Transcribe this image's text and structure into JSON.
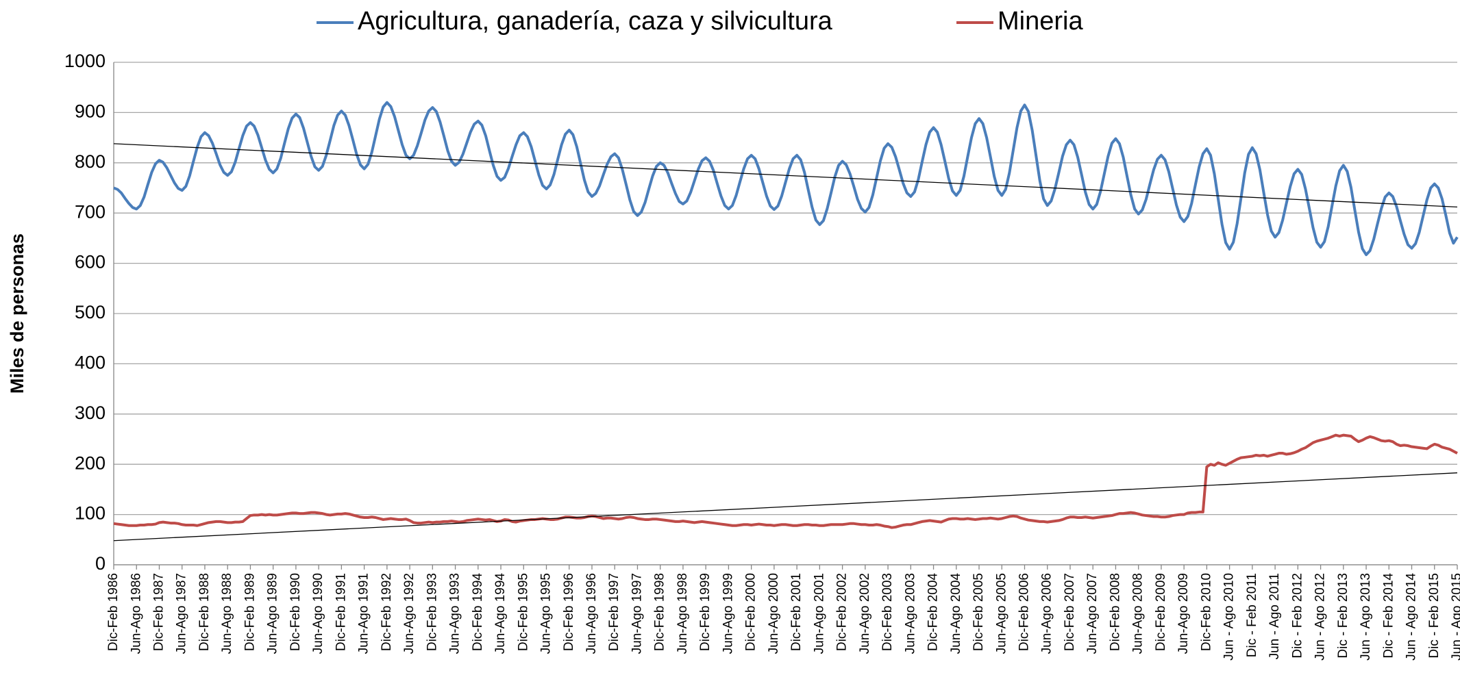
{
  "chart_data": {
    "type": "line",
    "y_label": "Miles de personas",
    "categories": [
      "Dic-Feb 1986",
      null,
      null,
      null,
      null,
      null,
      "Jun-Ago 1986",
      null,
      null,
      null,
      null,
      null,
      "Dic-Feb 1987",
      null,
      null,
      null,
      null,
      null,
      "Jun-Ago 1987",
      null,
      null,
      null,
      null,
      null,
      "Dic-Feb 1988",
      null,
      null,
      null,
      null,
      null,
      "Jun-Ago 1988",
      null,
      null,
      null,
      null,
      null,
      "Dic-Feb 1989",
      null,
      null,
      null,
      null,
      null,
      "Jun-Ago 1989",
      null,
      null,
      null,
      null,
      null,
      "Dic-Feb 1990",
      null,
      null,
      null,
      null,
      null,
      "Jun-Ago 1990",
      null,
      null,
      null,
      null,
      null,
      "Dic-Feb 1991",
      null,
      null,
      null,
      null,
      null,
      "Jun-Ago 1991",
      null,
      null,
      null,
      null,
      null,
      "Dic-Feb 1992",
      null,
      null,
      null,
      null,
      null,
      "Jun-Ago 1992",
      null,
      null,
      null,
      null,
      null,
      "Dic-Feb 1993",
      null,
      null,
      null,
      null,
      null,
      "Jun-Ago 1993",
      null,
      null,
      null,
      null,
      null,
      "Dic-Feb 1994",
      null,
      null,
      null,
      null,
      null,
      "Jun-Ago 1994",
      null,
      null,
      null,
      null,
      null,
      "Dic-Feb 1995",
      null,
      null,
      null,
      null,
      null,
      "Jun-Ago 1995",
      null,
      null,
      null,
      null,
      null,
      "Dic-Feb 1996",
      null,
      null,
      null,
      null,
      null,
      "Jun-Ago 1996",
      null,
      null,
      null,
      null,
      null,
      "Dic-Feb 1997",
      null,
      null,
      null,
      null,
      null,
      "Jun-Ago 1997",
      null,
      null,
      null,
      null,
      null,
      "Dic-Feb 1998",
      null,
      null,
      null,
      null,
      null,
      "Jun-Ago 1998",
      null,
      null,
      null,
      null,
      null,
      "Dic-Feb 1999",
      null,
      null,
      null,
      null,
      null,
      "Jun-Ago 1999",
      null,
      null,
      null,
      null,
      null,
      "Dic-Feb 2000",
      null,
      null,
      null,
      null,
      null,
      "Jun-Ago 2000",
      null,
      null,
      null,
      null,
      null,
      "Dic-Feb 2001",
      null,
      null,
      null,
      null,
      null,
      "Jun-Ago 2001",
      null,
      null,
      null,
      null,
      null,
      "Dic-Feb 2002",
      null,
      null,
      null,
      null,
      null,
      "Jun-Ago 2002",
      null,
      null,
      null,
      null,
      null,
      "Dic-Feb 2003",
      null,
      null,
      null,
      null,
      null,
      "Jun-Ago 2003",
      null,
      null,
      null,
      null,
      null,
      "Dic-Feb 2004",
      null,
      null,
      null,
      null,
      null,
      "Jun-Ago 2004",
      null,
      null,
      null,
      null,
      null,
      "Dic-Feb 2005",
      null,
      null,
      null,
      null,
      null,
      "Jun-Ago 2005",
      null,
      null,
      null,
      null,
      null,
      "Dic-Feb 2006",
      null,
      null,
      null,
      null,
      null,
      "Jun-Ago 2006",
      null,
      null,
      null,
      null,
      null,
      "Dic-Feb 2007",
      null,
      null,
      null,
      null,
      null,
      "Jun-Ago 2007",
      null,
      null,
      null,
      null,
      null,
      "Dic-Feb 2008",
      null,
      null,
      null,
      null,
      null,
      "Jun-Ago 2008",
      null,
      null,
      null,
      null,
      null,
      "Dic-Feb 2009",
      null,
      null,
      null,
      null,
      null,
      "Jun-Ago 2009",
      null,
      null,
      null,
      null,
      null,
      "Dic-Feb 2010",
      null,
      null,
      null,
      null,
      null,
      "Jun - Ago 2010",
      null,
      null,
      null,
      null,
      null,
      "Dic - Feb 2011",
      null,
      null,
      null,
      null,
      null,
      "Jun - Ago 2011",
      null,
      null,
      null,
      null,
      null,
      "Dic - Feb 2012",
      null,
      null,
      null,
      null,
      null,
      "Jun - Ago 2012",
      null,
      null,
      null,
      null,
      null,
      "Dic - Feb 2013",
      null,
      null,
      null,
      null,
      null,
      "Jun - Ago 2013",
      null,
      null,
      null,
      null,
      null,
      "Dic - Feb 2014",
      null,
      null,
      null,
      null,
      null,
      "Jun - Ago 2014",
      null,
      null,
      null,
      null,
      null,
      "Dic - Feb 2015",
      null,
      null,
      null,
      null,
      null,
      "Jun - Ago 2015"
    ],
    "series": [
      {
        "name": "Agricultura, ganadería, caza y silvicultura",
        "color": "#4a7ebb",
        "values": [
          750,
          747,
          740,
          729,
          719,
          711,
          708,
          715,
          732,
          757,
          781,
          798,
          805,
          801,
          790,
          775,
          760,
          749,
          745,
          753,
          774,
          803,
          831,
          852,
          860,
          854,
          839,
          818,
          796,
          781,
          775,
          782,
          801,
          828,
          854,
          873,
          880,
          873,
          855,
          830,
          805,
          787,
          780,
          788,
          809,
          839,
          868,
          889,
          897,
          890,
          869,
          841,
          813,
          792,
          785,
          793,
          815,
          844,
          874,
          895,
          903,
          895,
          874,
          846,
          817,
          796,
          788,
          797,
          821,
          854,
          887,
          911,
          920,
          912,
          892,
          864,
          836,
          815,
          808,
          815,
          834,
          859,
          885,
          903,
          910,
          902,
          881,
          853,
          824,
          803,
          795,
          801,
          817,
          839,
          861,
          877,
          883,
          875,
          854,
          824,
          795,
          773,
          765,
          771,
          789,
          813,
          836,
          854,
          860,
          852,
          832,
          804,
          776,
          755,
          748,
          756,
          777,
          807,
          836,
          857,
          865,
          856,
          832,
          799,
          766,
          742,
          733,
          739,
          754,
          776,
          797,
          812,
          818,
          810,
          787,
          757,
          726,
          703,
          695,
          702,
          721,
          748,
          774,
          793,
          800,
          795,
          780,
          759,
          739,
          723,
          718,
          724,
          741,
          764,
          787,
          804,
          810,
          803,
          785,
          759,
          734,
          715,
          708,
          715,
          735,
          762,
          788,
          808,
          815,
          808,
          788,
          761,
          734,
          714,
          707,
          714,
          734,
          761,
          788,
          808,
          815,
          806,
          781,
          746,
          712,
          686,
          677,
          685,
          709,
          740,
          772,
          795,
          803,
          796,
          778,
          753,
          727,
          709,
          702,
          711,
          736,
          770,
          804,
          829,
          838,
          831,
          812,
          786,
          759,
          740,
          733,
          742,
          767,
          802,
          836,
          861,
          870,
          861,
          836,
          803,
          769,
          744,
          735,
          745,
          773,
          812,
          850,
          878,
          888,
          878,
          850,
          812,
          773,
          745,
          735,
          747,
          780,
          825,
          870,
          903,
          915,
          902,
          865,
          815,
          765,
          728,
          715,
          724,
          748,
          780,
          813,
          836,
          845,
          836,
          811,
          777,
          742,
          717,
          708,
          717,
          743,
          778,
          813,
          839,
          848,
          838,
          811,
          773,
          736,
          708,
          698,
          706,
          727,
          757,
          786,
          807,
          815,
          806,
          782,
          749,
          716,
          692,
          683,
          693,
          719,
          756,
          792,
          818,
          828,
          815,
          778,
          728,
          678,
          641,
          628,
          642,
          679,
          729,
          780,
          817,
          830,
          818,
          786,
          741,
          697,
          664,
          652,
          661,
          686,
          720,
          753,
          778,
          787,
          777,
          748,
          710,
          671,
          642,
          632,
          643,
          673,
          714,
          754,
          784,
          795,
          783,
          751,
          706,
          662,
          629,
          617,
          625,
          648,
          679,
          709,
          732,
          740,
          733,
          713,
          685,
          658,
          637,
          630,
          639,
          662,
          694,
          726,
          750,
          758,
          750,
          728,
          695,
          660,
          640,
          652
        ]
      },
      {
        "name": "Mineria",
        "color": "#be4b48",
        "values": [
          82,
          81,
          80,
          79,
          78,
          78,
          78,
          79,
          79,
          80,
          80,
          81,
          84,
          85,
          84,
          83,
          83,
          82,
          80,
          79,
          79,
          79,
          78,
          80,
          82,
          84,
          85,
          86,
          86,
          85,
          84,
          84,
          85,
          85,
          86,
          92,
          98,
          99,
          99,
          100,
          99,
          100,
          99,
          99,
          100,
          101,
          102,
          103,
          103,
          102,
          102,
          103,
          104,
          104,
          103,
          102,
          100,
          99,
          100,
          101,
          101,
          102,
          101,
          99,
          97,
          95,
          94,
          94,
          95,
          94,
          92,
          90,
          91,
          92,
          91,
          90,
          90,
          91,
          88,
          84,
          83,
          83,
          84,
          85,
          84,
          85,
          85,
          86,
          86,
          87,
          86,
          85,
          86,
          88,
          89,
          90,
          91,
          90,
          89,
          90,
          88,
          86,
          87,
          90,
          89,
          86,
          85,
          87,
          88,
          89,
          90,
          90,
          91,
          92,
          91,
          90,
          90,
          91,
          93,
          95,
          95,
          94,
          93,
          93,
          94,
          96,
          97,
          96,
          94,
          92,
          93,
          93,
          92,
          91,
          92,
          94,
          95,
          94,
          92,
          91,
          90,
          90,
          91,
          91,
          90,
          89,
          88,
          87,
          86,
          86,
          87,
          86,
          85,
          84,
          85,
          86,
          85,
          84,
          83,
          82,
          81,
          80,
          79,
          78,
          78,
          79,
          80,
          80,
          79,
          80,
          81,
          80,
          79,
          79,
          78,
          79,
          80,
          80,
          79,
          78,
          78,
          79,
          80,
          80,
          79,
          79,
          78,
          78,
          79,
          80,
          80,
          80,
          80,
          81,
          82,
          82,
          81,
          80,
          80,
          79,
          79,
          80,
          79,
          77,
          76,
          74,
          75,
          77,
          79,
          80,
          80,
          82,
          84,
          86,
          87,
          88,
          87,
          86,
          85,
          88,
          91,
          92,
          92,
          91,
          91,
          92,
          91,
          90,
          91,
          92,
          92,
          93,
          92,
          91,
          92,
          94,
          96,
          97,
          96,
          93,
          91,
          89,
          88,
          87,
          86,
          86,
          85,
          86,
          87,
          88,
          90,
          93,
          95,
          95,
          94,
          94,
          95,
          94,
          93,
          94,
          95,
          96,
          97,
          98,
          100,
          102,
          102,
          103,
          104,
          103,
          101,
          99,
          98,
          97,
          96,
          96,
          95,
          95,
          96,
          98,
          99,
          100,
          100,
          103,
          104,
          104,
          105,
          105,
          195,
          200,
          198,
          203,
          200,
          198,
          202,
          206,
          210,
          213,
          214,
          215,
          216,
          218,
          217,
          218,
          216,
          218,
          220,
          222,
          222,
          220,
          221,
          223,
          226,
          230,
          233,
          238,
          243,
          246,
          248,
          250,
          252,
          255,
          258,
          256,
          258,
          257,
          256,
          250,
          245,
          248,
          252,
          255,
          253,
          250,
          247,
          246,
          247,
          245,
          240,
          237,
          238,
          237,
          235,
          234,
          233,
          232,
          231,
          236,
          240,
          238,
          234,
          232,
          230,
          226,
          222
        ]
      }
    ],
    "trendlines": [
      {
        "start": 838,
        "end": 712,
        "color": "#000000"
      },
      {
        "start": 48,
        "end": 183,
        "color": "#000000"
      }
    ],
    "ylim": [
      0,
      1000
    ],
    "yticks": [
      0,
      100,
      200,
      300,
      400,
      500,
      600,
      700,
      800,
      900,
      1000
    ],
    "grid": true
  }
}
